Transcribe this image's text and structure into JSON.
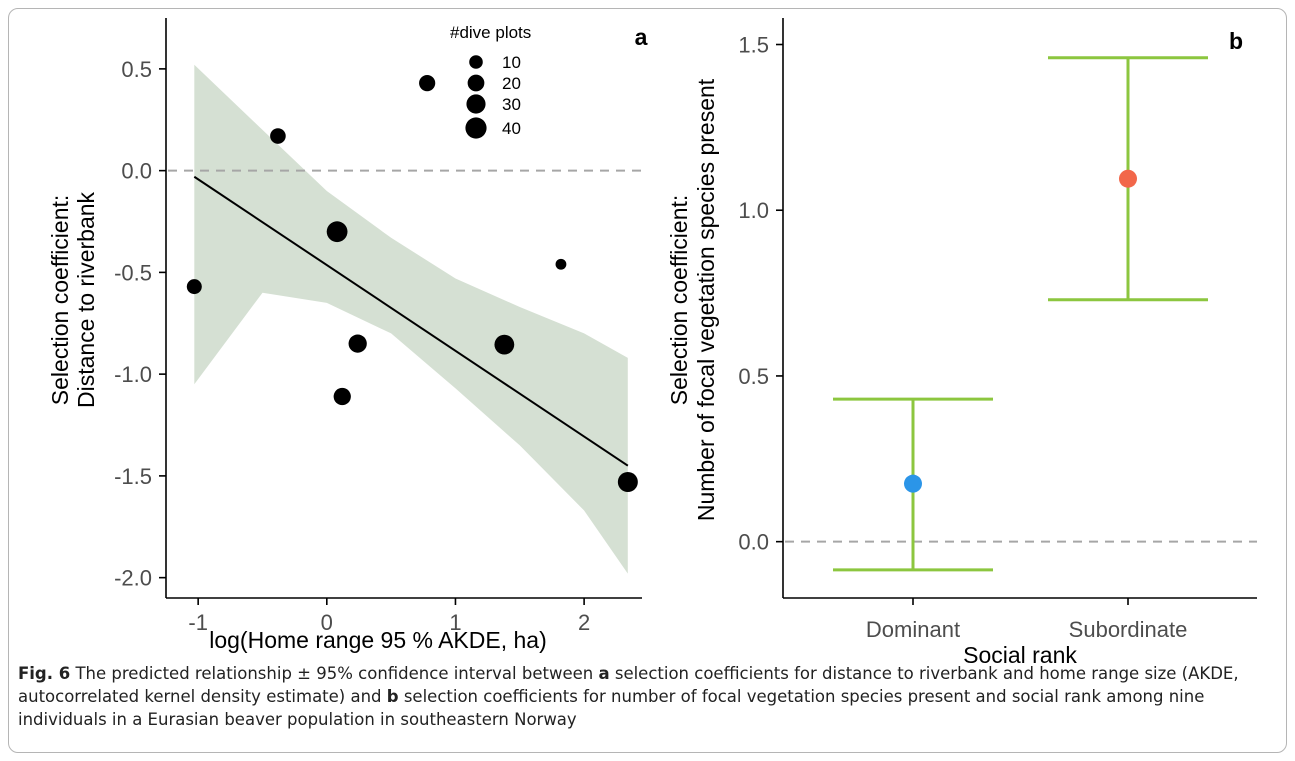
{
  "chart_data": [
    {
      "panel": "a",
      "type": "scatter",
      "xlabel": "log(Home range 95 % AKDE, ha)",
      "ylabel": [
        "Selection coefficient:",
        "Distance to riverbank"
      ],
      "xlim": [
        -1.25,
        2.45
      ],
      "ylim": [
        -2.1,
        0.75
      ],
      "xticks": [
        -1,
        0,
        1,
        2
      ],
      "yticks": [
        0.5,
        0.0,
        -0.5,
        -1.0,
        -1.5,
        -2.0
      ],
      "ytick_labels": [
        "0.5",
        "0.0",
        "-0.5",
        "-1.0",
        "-1.5",
        "-2.0"
      ],
      "reference_line_y": 0.0,
      "legend": {
        "title": "#dive plots",
        "position": "top-center",
        "sizes": [
          10,
          20,
          30,
          40
        ],
        "labels": [
          "10",
          "20",
          "30",
          "40"
        ]
      },
      "points": [
        {
          "x": -1.03,
          "y": -0.57,
          "size": 14
        },
        {
          "x": -0.38,
          "y": 0.17,
          "size": 16
        },
        {
          "x": 0.08,
          "y": -0.3,
          "size": 38
        },
        {
          "x": 0.12,
          "y": -1.11,
          "size": 22
        },
        {
          "x": 0.24,
          "y": -0.85,
          "size": 26
        },
        {
          "x": 0.78,
          "y": 0.43,
          "size": 18
        },
        {
          "x": 1.38,
          "y": -0.855,
          "size": 33
        },
        {
          "x": 1.82,
          "y": -0.46,
          "size": 4
        },
        {
          "x": 2.34,
          "y": -1.53,
          "size": 34
        }
      ],
      "fit_line": {
        "x": [
          -1.03,
          2.34
        ],
        "y": [
          -0.03,
          -1.45
        ]
      },
      "confidence_band": {
        "x": [
          -1.03,
          -0.5,
          0.0,
          0.5,
          1.0,
          1.5,
          2.0,
          2.34
        ],
        "upper": [
          0.52,
          0.2,
          -0.1,
          -0.33,
          -0.53,
          -0.67,
          -0.8,
          -0.92
        ],
        "lower": [
          -1.05,
          -0.6,
          -0.65,
          -0.8,
          -1.07,
          -1.35,
          -1.67,
          -1.98
        ]
      },
      "colors": {
        "band": "#d5e0d3",
        "points": "#000000",
        "line": "#000000",
        "refline": "#a6a6a6"
      }
    },
    {
      "panel": "b",
      "type": "errorbar",
      "xlabel": "Social rank",
      "ylabel": [
        "Selection coefficient:",
        "Number of focal vegetation species present"
      ],
      "categories": [
        "Dominant",
        "Subordinate"
      ],
      "ylim": [
        -0.17,
        1.58
      ],
      "yticks": [
        0.0,
        0.5,
        1.0,
        1.5
      ],
      "ytick_labels": [
        "0.0",
        "0.5",
        "1.0",
        "1.5"
      ],
      "reference_line_y": 0.0,
      "estimates": [
        {
          "category": "Dominant",
          "y": 0.175,
          "lower": -0.085,
          "upper": 0.43,
          "color": "#2b95e8"
        },
        {
          "category": "Subordinate",
          "y": 1.095,
          "lower": 0.73,
          "upper": 1.46,
          "color": "#f2674a"
        }
      ],
      "colors": {
        "errorbar": "#8cc63f",
        "refline": "#a6a6a6"
      }
    }
  ],
  "caption": {
    "label": "Fig. 6",
    "text_1": " The predicted relationship ± 95% confidence interval between ",
    "bold_a": "a",
    "text_2": " selection coefficients for distance to riverbank and home range size (AKDE, autocorrelated kernel density estimate) and ",
    "bold_b": "b",
    "text_3": " selection coefficients for number of focal vegetation species present and social rank among nine individuals in a Eurasian beaver population in southeastern Norway"
  }
}
